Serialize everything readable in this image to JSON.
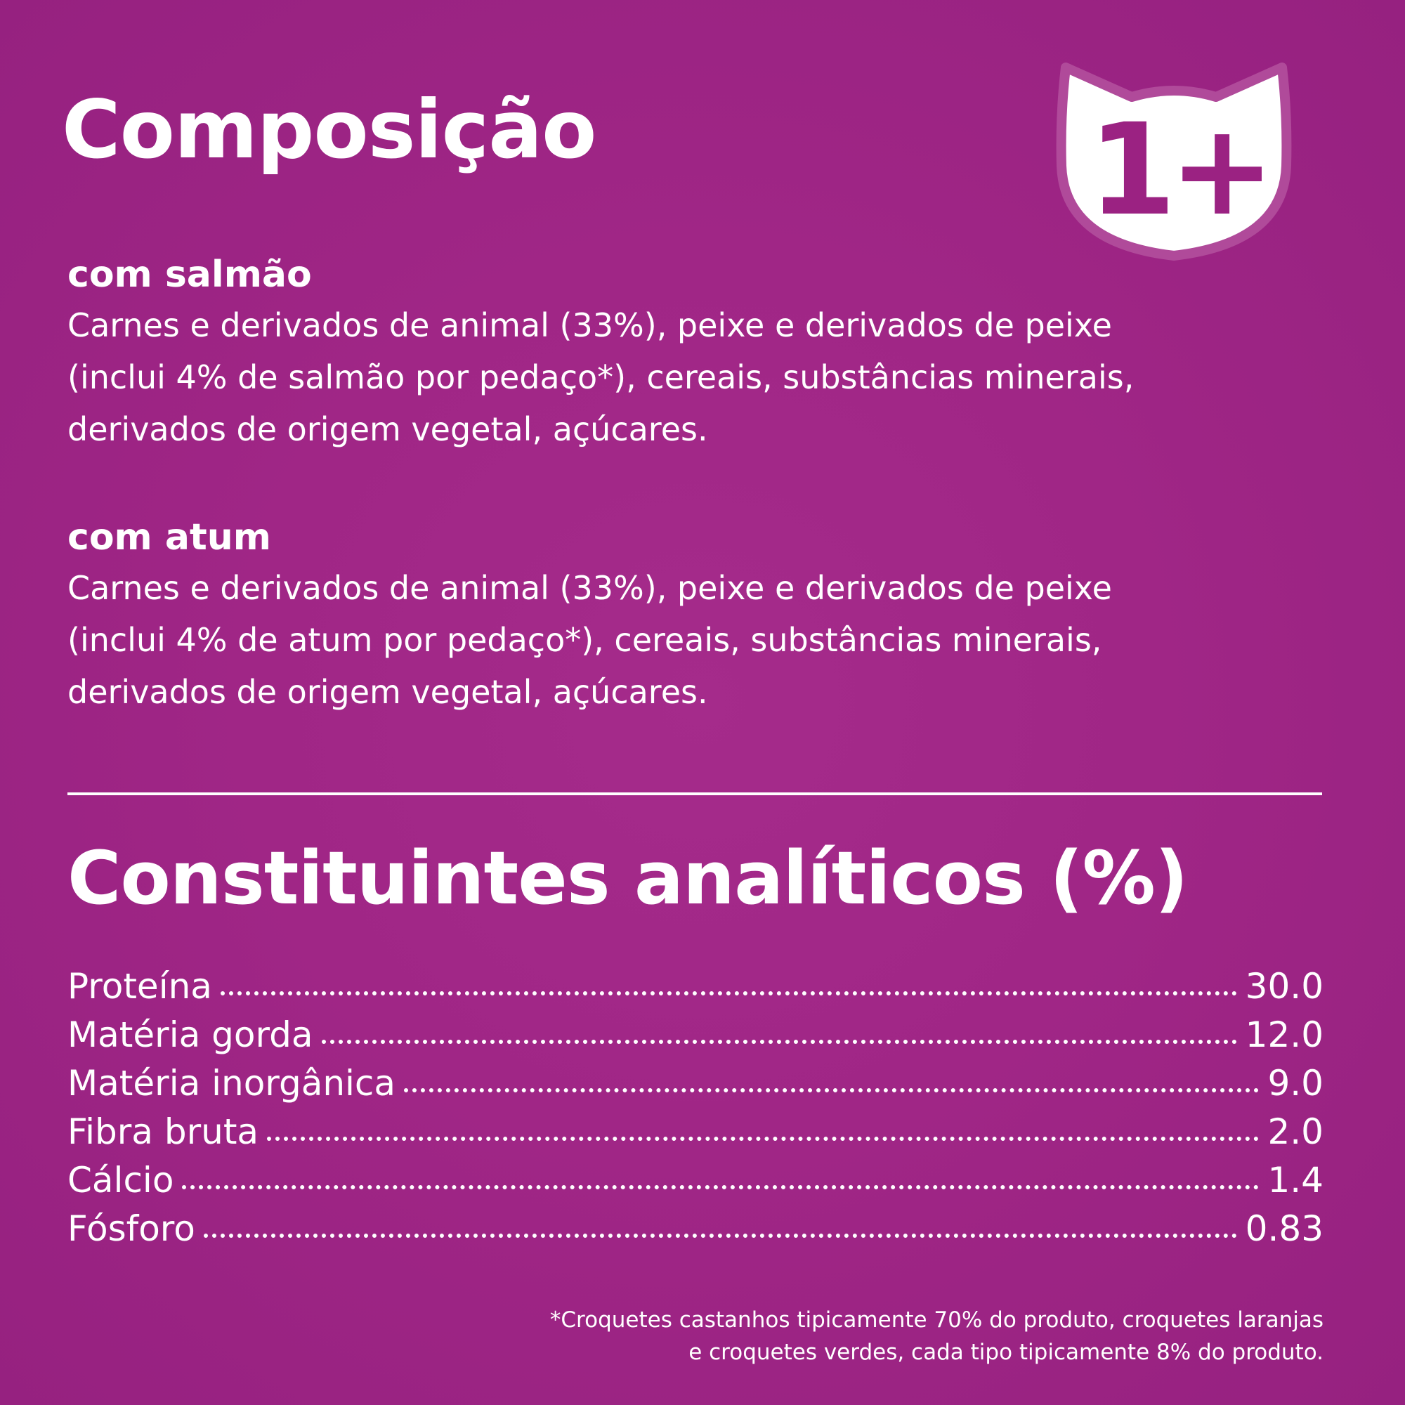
{
  "colors": {
    "background": "#a02686",
    "text": "#ffffff",
    "badge_number": "#9b2282"
  },
  "composicao": {
    "title": "Composição"
  },
  "age_badge": {
    "icon": "cat-head-icon",
    "label": "1+"
  },
  "sections": [
    {
      "heading": "com salmão",
      "text": "Carnes e derivados de animal (33%), peixe e derivados de peixe\n(inclui 4% de salmão por pedaço*), cereais, substâncias minerais,\nderivados de origem vegetal, açúcares."
    },
    {
      "heading": "com atum",
      "text": "Carnes e derivados de animal (33%), peixe e derivados de peixe\n(inclui 4% de atum por pedaço*), cereais, substâncias minerais,\n derivados de origem vegetal, açúcares."
    }
  ],
  "constituintes": {
    "title": "Constituintes analíticos (%)",
    "rows": [
      {
        "label": "Proteína",
        "value": "30.0"
      },
      {
        "label": "Matéria gorda",
        "value": "12.0"
      },
      {
        "label": "Matéria inorgânica",
        "value": "9.0"
      },
      {
        "label": "Fibra bruta",
        "value": "2.0"
      },
      {
        "label": "Cálcio",
        "value": "1.4"
      },
      {
        "label": "Fósforo",
        "value": "0.83"
      }
    ]
  },
  "footnote": "*Croquetes castanhos tipicamente 70% do produto, croquetes laranjas\ne croquetes verdes, cada tipo tipicamente 8% do produto."
}
